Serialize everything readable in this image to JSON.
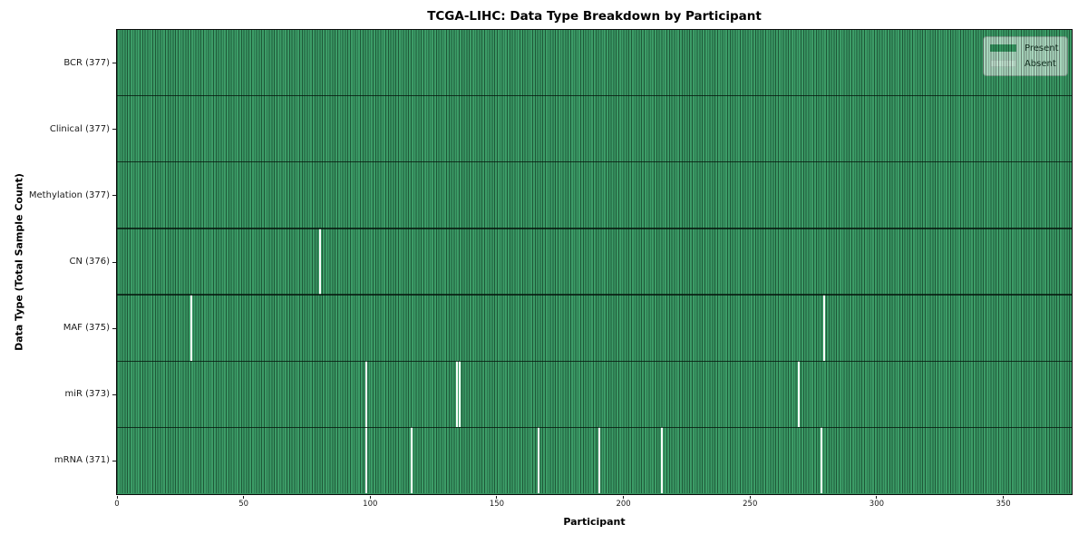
{
  "title": "TCGA-LIHC: Data Type Breakdown by Participant",
  "xlabel": "Participant",
  "ylabel": "Data Type (Total Sample Count)",
  "legend": {
    "present_label": "Present",
    "absent_label": "Absent",
    "position": "upper right"
  },
  "colors": {
    "present": "#2e8b57",
    "absent": "#ffffff",
    "grid_line": "#16321f",
    "axis": "#0d0d0d",
    "legend_background": "#e9eee9"
  },
  "chart_data": {
    "type": "heatmap",
    "title": "TCGA-LIHC: Data Type Breakdown by Participant",
    "xlabel": "Participant",
    "ylabel": "Data Type (Total Sample Count)",
    "x_range": [
      0,
      377
    ],
    "x_ticks": [
      0,
      50,
      100,
      150,
      200,
      250,
      300,
      350
    ],
    "total_participants": 377,
    "grid": false,
    "legend_entries": [
      "Present",
      "Absent"
    ],
    "legend_position": "upper right",
    "rows": [
      {
        "label": "BCR (377)",
        "data_type": "BCR",
        "present_count": 377,
        "absent_participants": []
      },
      {
        "label": "Clinical (377)",
        "data_type": "Clinical",
        "present_count": 377,
        "absent_participants": []
      },
      {
        "label": "Methylation (377)",
        "data_type": "Methylation",
        "present_count": 377,
        "absent_participants": []
      },
      {
        "label": "CN (376)",
        "data_type": "CN",
        "present_count": 376,
        "absent_participants": [
          80
        ]
      },
      {
        "label": "MAF (375)",
        "data_type": "MAF",
        "present_count": 375,
        "absent_participants": [
          29,
          279
        ]
      },
      {
        "label": "miR (373)",
        "data_type": "miR",
        "present_count": 373,
        "absent_participants": [
          98,
          134,
          135,
          269
        ]
      },
      {
        "label": "mRNA (371)",
        "data_type": "mRNA",
        "present_count": 371,
        "absent_participants": [
          98,
          116,
          166,
          190,
          215,
          278
        ]
      }
    ]
  }
}
